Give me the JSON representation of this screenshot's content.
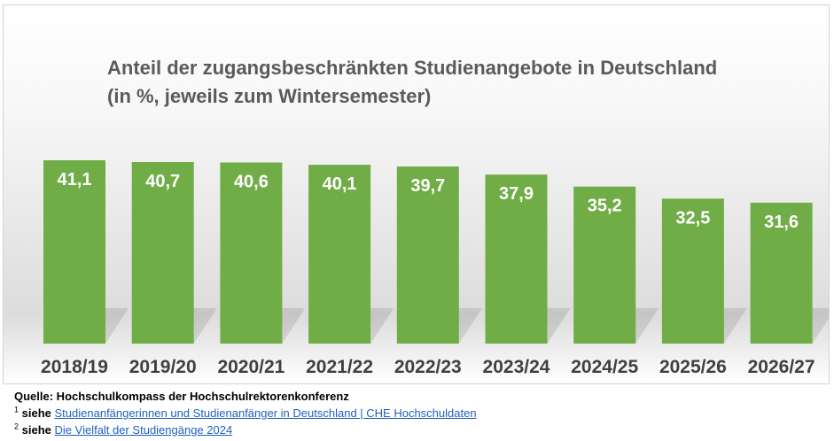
{
  "chart_data": {
    "type": "bar",
    "title_lines": [
      "Anteil der zugangsbeschränkten Studienangebote  in Deutschland",
      "(in %, jeweils zum Wintersemester)"
    ],
    "categories": [
      "2018/19",
      "2019/20",
      "2020/21",
      "2021/22",
      "2022/23",
      "2023/24",
      "2024/25",
      "2025/26",
      "2026/27"
    ],
    "values": [
      41.1,
      40.7,
      40.6,
      40.1,
      39.7,
      37.9,
      35.2,
      32.5,
      31.6
    ],
    "data_labels": [
      "41,1",
      "40,7",
      "40,6",
      "40,1",
      "39,7",
      "37,9",
      "35,2",
      "32,5",
      "31,6"
    ],
    "bar_color": "#70ad47",
    "ylim": [
      0,
      41.1
    ],
    "grid": false,
    "legend": "none"
  },
  "footer": {
    "source": "Quelle: Hochschulkompass der Hochschulrektorenkonferenz",
    "notes": [
      {
        "marker": "1",
        "label": "siehe",
        "link_text": "Studienanfängerinnen und Studienanfänger in Deutschland | CHE Hochschuldaten"
      },
      {
        "marker": "2",
        "label": "siehe",
        "link_text": "Die Vielfalt der Studiengänge 2024"
      }
    ]
  }
}
